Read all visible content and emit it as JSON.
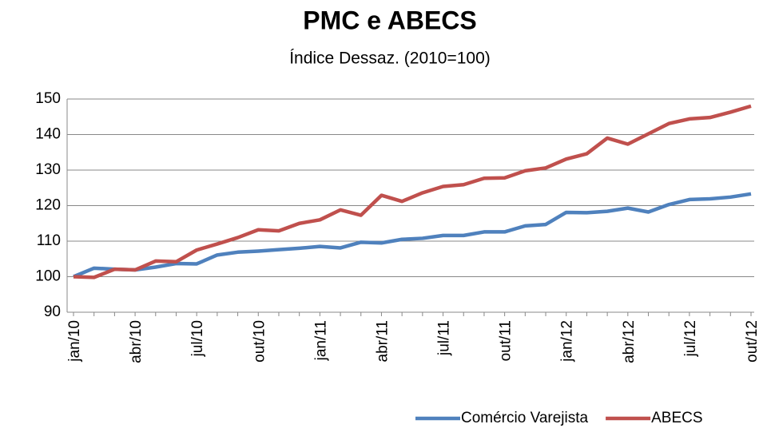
{
  "chart_data": {
    "type": "line",
    "title": "PMC e ABECS",
    "subtitle": "Índice Dessaz. (2010=100)",
    "categories": [
      "jan/10",
      null,
      null,
      "abr/10",
      null,
      null,
      "jul/10",
      null,
      null,
      "out/10",
      null,
      null,
      "jan/11",
      null,
      null,
      "abr/11",
      null,
      null,
      "jul/11",
      null,
      null,
      "out/11",
      null,
      null,
      "jan/12",
      null,
      null,
      "abr/12",
      null,
      null,
      "jul/12",
      null,
      null,
      "out/12"
    ],
    "series": [
      {
        "name": "Comércio Varejista",
        "color": "#4f81bd",
        "values": [
          100,
          102.4,
          102.1,
          101.9,
          102.7,
          103.7,
          103.6,
          106.1,
          106.9,
          107.2,
          107.6,
          108,
          108.5,
          108.1,
          109.7,
          109.5,
          110.5,
          110.8,
          111.6,
          111.6,
          112.6,
          112.6,
          114.3,
          114.7,
          118.1,
          118,
          118.4,
          119.3,
          118.2,
          120.3,
          121.7,
          121.9,
          122.4,
          123.3
        ]
      },
      {
        "name": "ABECS",
        "color": "#c0504d",
        "values": [
          100,
          99.8,
          102.1,
          101.9,
          104.4,
          104.2,
          107.5,
          109.2,
          111,
          113.2,
          112.9,
          115,
          116,
          118.8,
          117.3,
          122.9,
          121.2,
          123.6,
          125.4,
          125.9,
          127.7,
          127.8,
          129.8,
          130.6,
          133.1,
          134.6,
          139,
          137.3,
          140.2,
          143.1,
          144.4,
          144.8,
          146.3,
          148
        ]
      }
    ],
    "ylim": [
      90,
      150
    ],
    "yticks": [
      90,
      100,
      110,
      120,
      130,
      140,
      150
    ],
    "grid": true,
    "legend": "bottom-right"
  }
}
